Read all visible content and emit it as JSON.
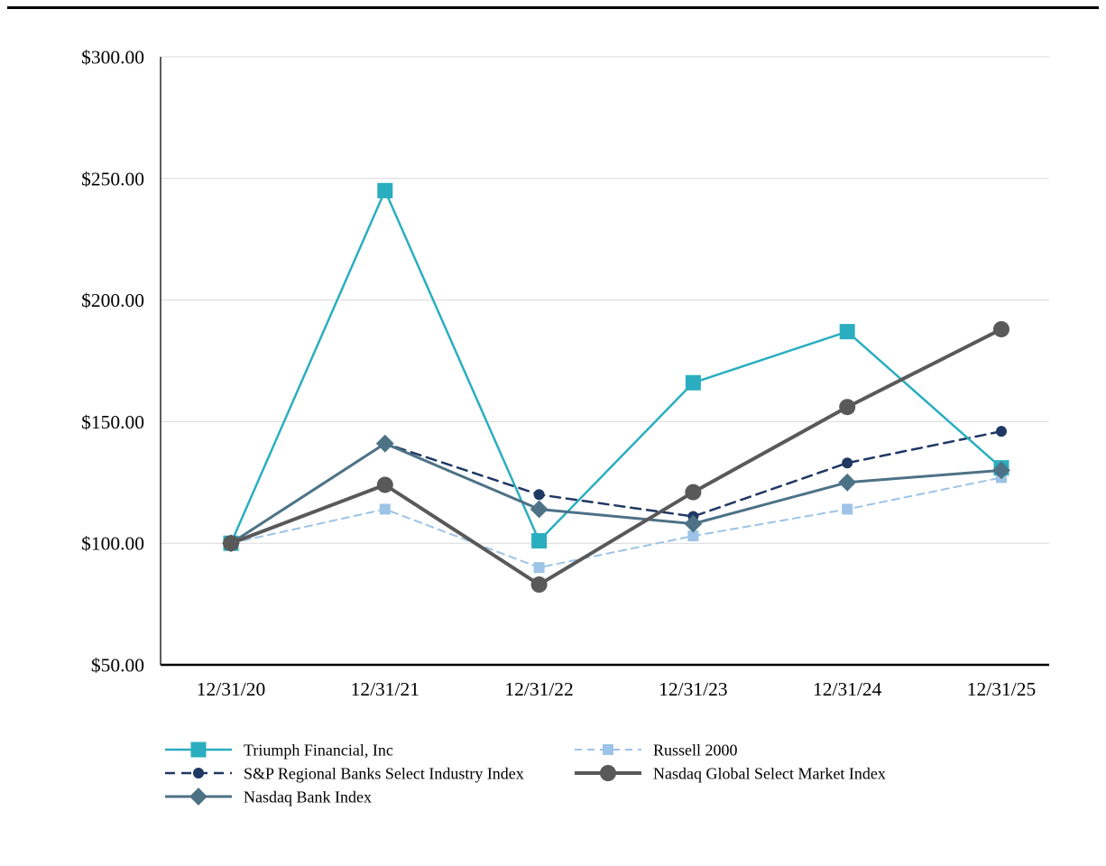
{
  "page": {
    "background": "#FFFFFF",
    "top_rule_color": "#000000"
  },
  "chart_data": {
    "type": "line",
    "title": "",
    "xlabel": "",
    "ylabel": "",
    "x": [
      "12/31/20",
      "12/31/21",
      "12/31/22",
      "12/31/23",
      "12/31/24",
      "12/31/25"
    ],
    "ylim": [
      50,
      300
    ],
    "y_tick_step": 50,
    "y_tick_labels": [
      "$50.00",
      "$100.00",
      "$150.00",
      "$200.00",
      "$250.00",
      "$300.00"
    ],
    "grid": true,
    "gridline_color": "#D9D9D9",
    "axis_color": "#000000",
    "legend_position": "bottom",
    "series": [
      {
        "name": "Russell 2000",
        "values": [
          100,
          114,
          90,
          103,
          114,
          127
        ],
        "color": "#9DC3E6",
        "marker": "square",
        "marker_size": 12,
        "line_width": 2,
        "dash": "dashed",
        "legend_col": 1,
        "legend_row": 0
      },
      {
        "name": "S&P Regional Banks Select Industry Index",
        "values": [
          100,
          141,
          120,
          111,
          133,
          146
        ],
        "color": "#1F3864",
        "marker": "circle",
        "marker_size": 12,
        "line_width": 2.5,
        "dash": "dashed",
        "legend_col": 0,
        "legend_row": 1
      },
      {
        "name": "Triumph Financial, Inc",
        "values": [
          100,
          245,
          101,
          166,
          187,
          131
        ],
        "color": "#2AAEBF",
        "marker": "square",
        "marker_size": 17,
        "line_width": 2.5,
        "dash": "solid",
        "legend_col": 0,
        "legend_row": 0
      },
      {
        "name": "Nasdaq Bank Index",
        "values": [
          100,
          141,
          114,
          108,
          125,
          130
        ],
        "color": "#4D7286",
        "marker": "diamond",
        "marker_size": 16,
        "line_width": 3,
        "dash": "solid",
        "legend_col": 0,
        "legend_row": 2
      },
      {
        "name": "Nasdaq Global Select Market Index",
        "values": [
          100,
          124,
          83,
          121,
          156,
          188
        ],
        "color": "#595959",
        "marker": "circle",
        "marker_size": 18,
        "line_width": 4,
        "dash": "solid",
        "legend_col": 1,
        "legend_row": 1
      }
    ]
  }
}
